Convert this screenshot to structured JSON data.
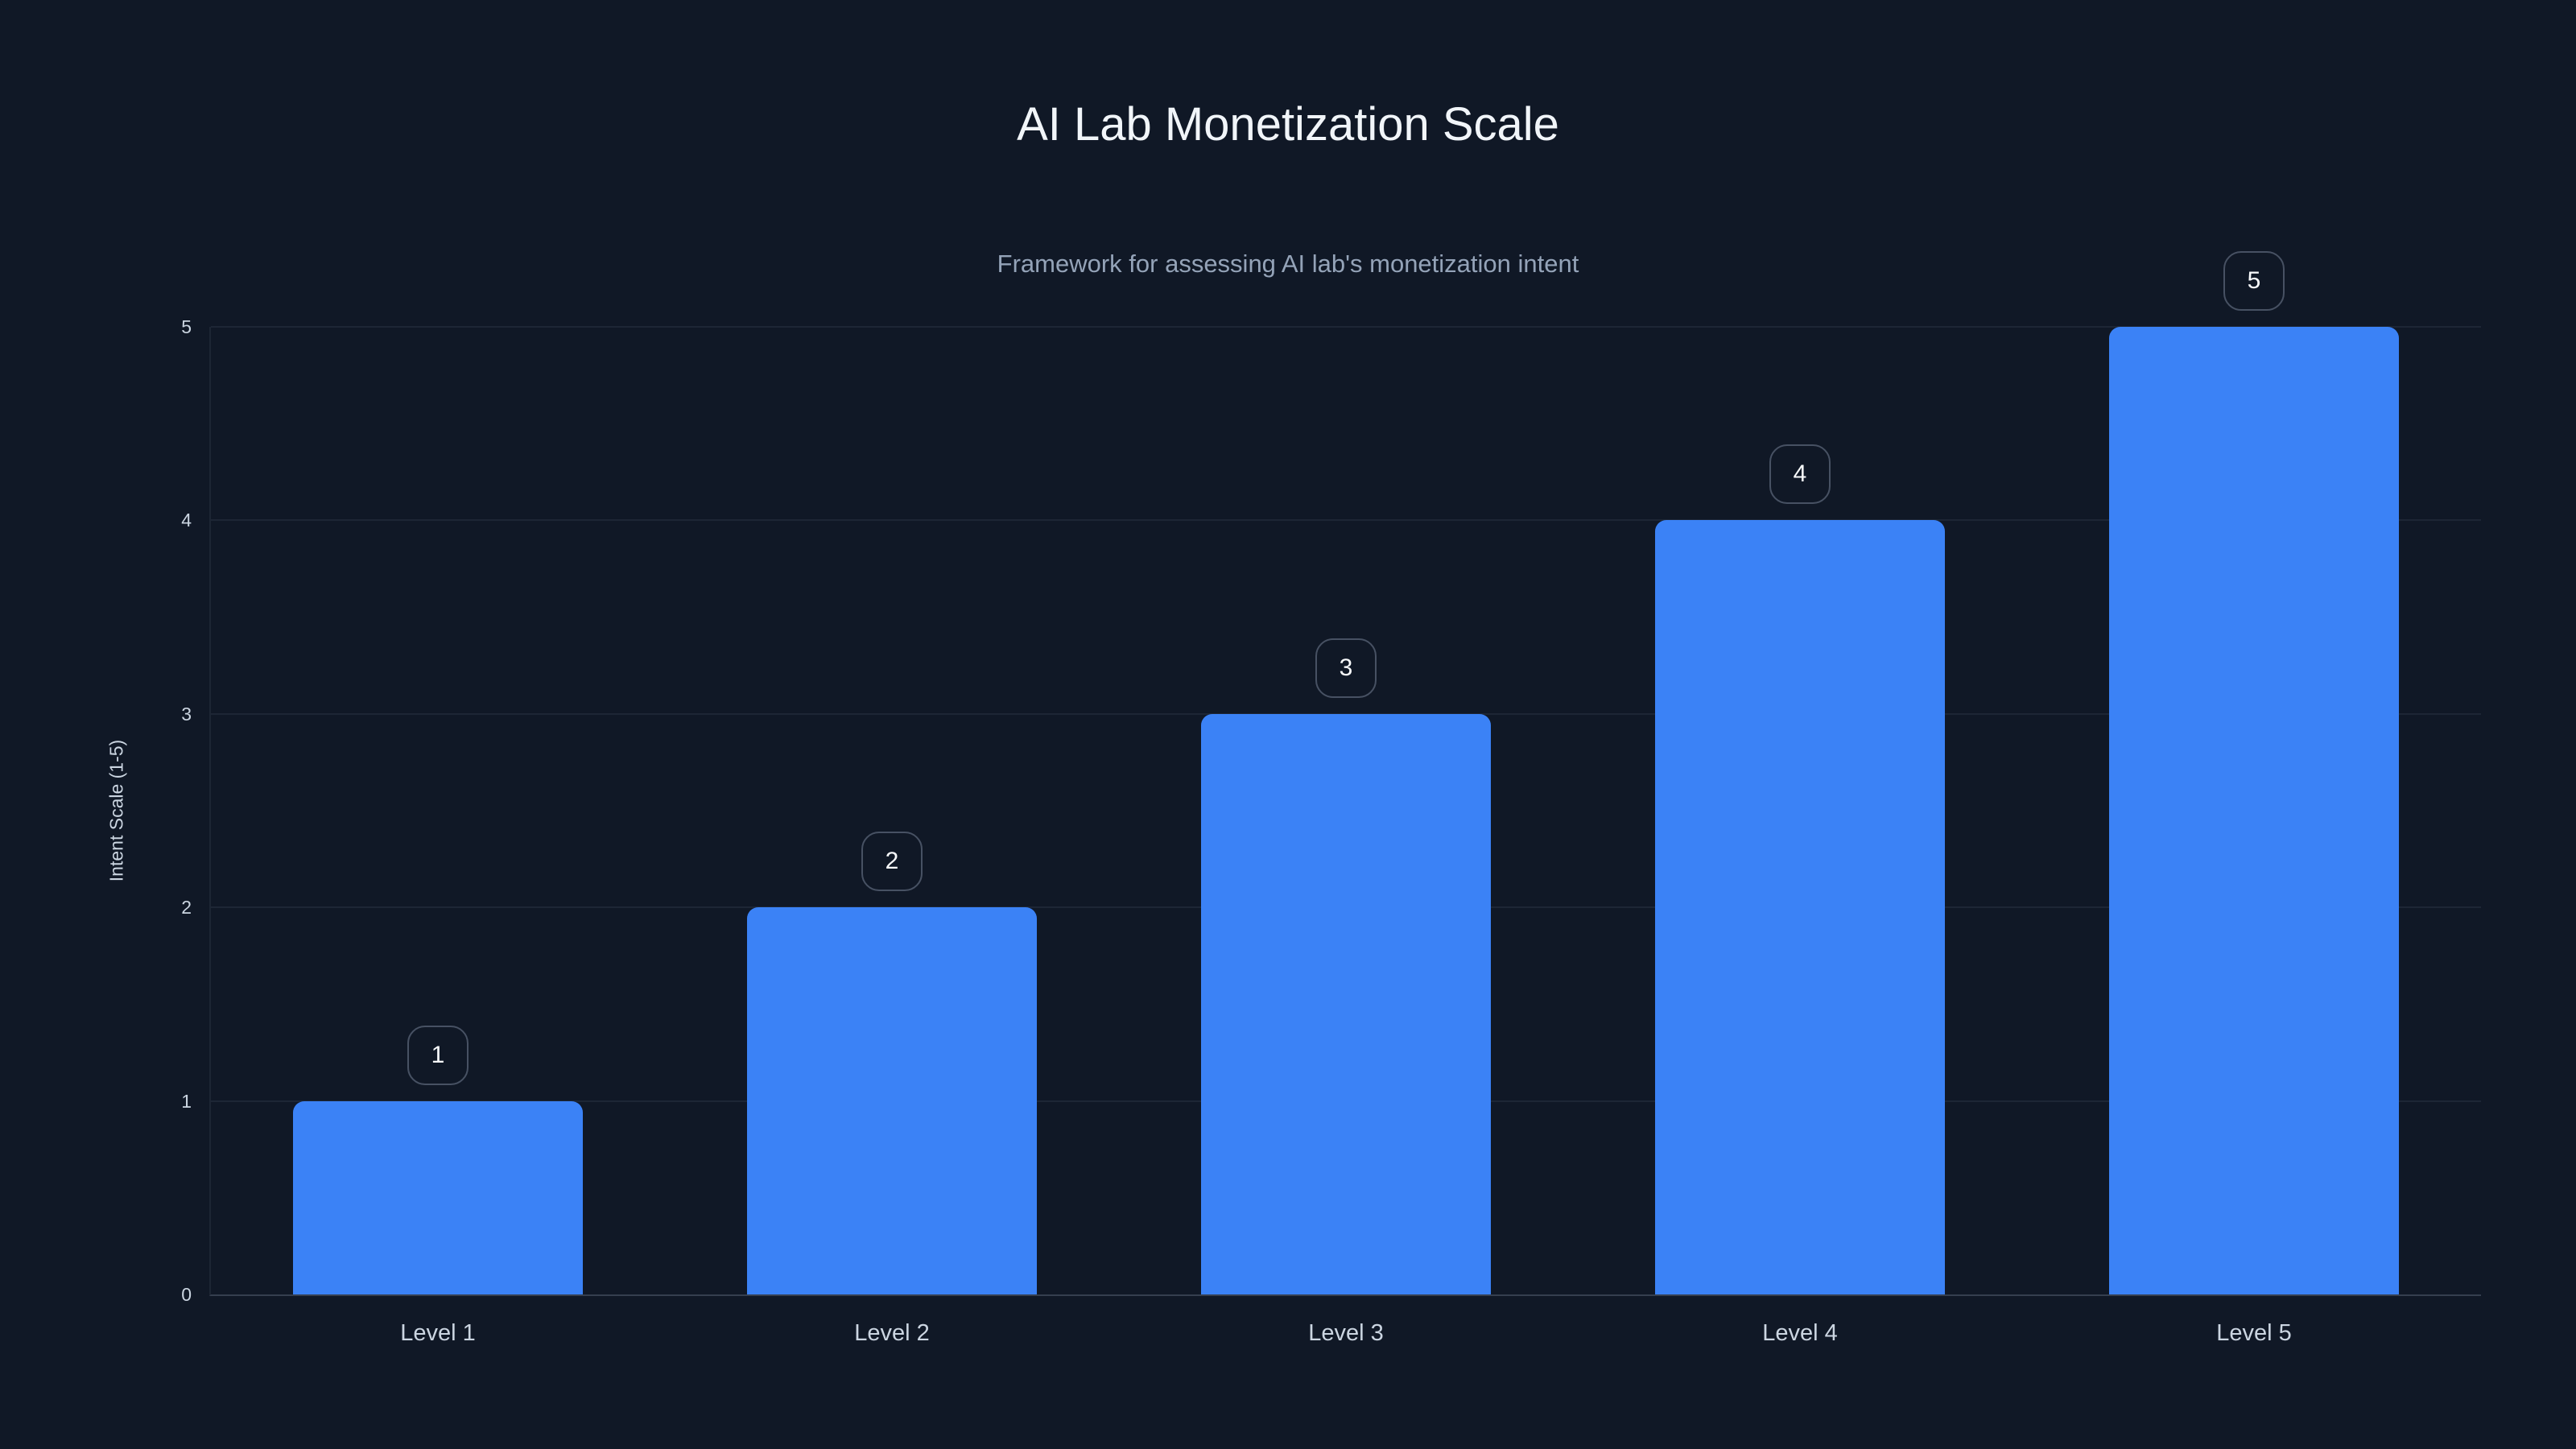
{
  "colors": {
    "background": "#101826",
    "bar": "#3b82f6",
    "title_text": "#f1f5f9",
    "subtitle_text": "#94a3b8",
    "label_text": "#cbd5e1"
  },
  "chart_data": {
    "type": "bar",
    "title": "AI Lab Monetization Scale",
    "subtitle": "Framework for assessing AI lab's monetization intent",
    "categories": [
      "Level 1",
      "Level 2",
      "Level 3",
      "Level 4",
      "Level 5"
    ],
    "values": [
      1,
      2,
      3,
      4,
      5
    ],
    "data_labels": [
      "1",
      "2",
      "3",
      "4",
      "5"
    ],
    "xlabel": "",
    "ylabel": "Intent Scale (1-5)",
    "ylim": [
      0,
      5
    ],
    "yticks": [
      0,
      1,
      2,
      3,
      4,
      5
    ],
    "grid": "horizontal",
    "legend": "none"
  }
}
